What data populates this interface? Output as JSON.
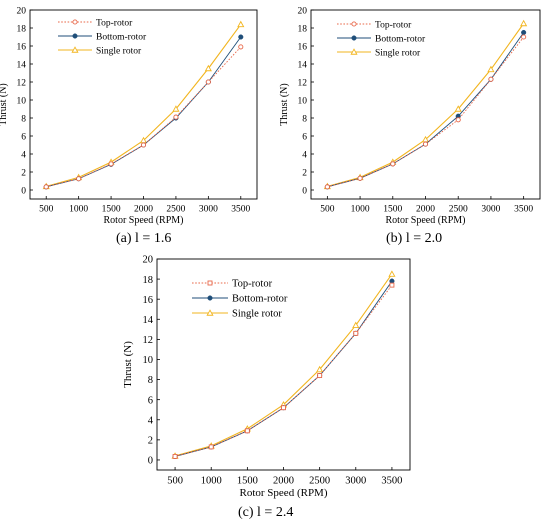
{
  "colors": {
    "top_rotor": "#e8684a",
    "bottom_rotor": "#1f4e79",
    "single_rotor": "#f2b51f",
    "axis": "#000000",
    "background": "#ffffff"
  },
  "chart_data": [
    {
      "type": "line",
      "caption": "(a) l = 1.6",
      "xlabel": "Rotor Speed (RPM)",
      "ylabel": "Thrust (N)",
      "x": [
        500,
        1000,
        1500,
        2000,
        2500,
        3000,
        3500
      ],
      "xlim": [
        250,
        3750
      ],
      "ylim": [
        -1,
        20
      ],
      "xticks": [
        500,
        1000,
        1500,
        2000,
        2500,
        3000,
        3500
      ],
      "yticks": [
        0,
        2,
        4,
        6,
        8,
        10,
        12,
        14,
        16,
        18,
        20
      ],
      "grid": false,
      "legend_position": "top-left",
      "series": [
        {
          "name": "Top-rotor",
          "style": "dotted",
          "marker": "open-circle",
          "values": [
            0.35,
            1.25,
            2.9,
            5.0,
            8.1,
            12.0,
            15.9
          ]
        },
        {
          "name": "Bottom-rotor",
          "style": "solid",
          "marker": "filled-circle",
          "values": [
            0.35,
            1.25,
            2.85,
            5.0,
            8.0,
            12.0,
            17.0
          ]
        },
        {
          "name": "Single rotor",
          "style": "solid",
          "marker": "triangle",
          "values": [
            0.4,
            1.4,
            3.1,
            5.5,
            9.0,
            13.5,
            18.4
          ]
        }
      ]
    },
    {
      "type": "line",
      "caption": "(b) l = 2.0",
      "xlabel": "Rotor Speed (RPM)",
      "ylabel": "Thrust (N)",
      "x": [
        500,
        1000,
        1500,
        2000,
        2500,
        3000,
        3500
      ],
      "xlim": [
        250,
        3750
      ],
      "ylim": [
        -1,
        20
      ],
      "xticks": [
        500,
        1000,
        1500,
        2000,
        2500,
        3000,
        3500
      ],
      "yticks": [
        0,
        2,
        4,
        6,
        8,
        10,
        12,
        14,
        16,
        18,
        20
      ],
      "grid": false,
      "legend_position": "top-left",
      "series": [
        {
          "name": "Top-rotor",
          "style": "dotted",
          "marker": "open-circle",
          "values": [
            0.35,
            1.3,
            2.9,
            5.1,
            7.8,
            12.3,
            17.0
          ]
        },
        {
          "name": "Bottom-rotor",
          "style": "solid",
          "marker": "filled-circle",
          "values": [
            0.35,
            1.3,
            2.9,
            5.1,
            8.2,
            12.3,
            17.5
          ]
        },
        {
          "name": "Single rotor",
          "style": "solid",
          "marker": "triangle",
          "values": [
            0.4,
            1.4,
            3.1,
            5.6,
            9.0,
            13.4,
            18.5
          ]
        }
      ]
    },
    {
      "type": "line",
      "caption": "(c) l = 2.4",
      "xlabel": "Rotor Speed (RPM)",
      "ylabel": "Thrust (N)",
      "x": [
        500,
        1000,
        1500,
        2000,
        2500,
        3000,
        3500
      ],
      "xlim": [
        250,
        3750
      ],
      "ylim": [
        -1,
        20
      ],
      "xticks": [
        500,
        1000,
        1500,
        2000,
        2500,
        3000,
        3500
      ],
      "yticks": [
        0,
        2,
        4,
        6,
        8,
        10,
        12,
        14,
        16,
        18,
        20
      ],
      "grid": false,
      "legend_position": "top-left",
      "series": [
        {
          "name": "Top-rotor",
          "style": "dotted",
          "marker": "open-square",
          "values": [
            0.35,
            1.3,
            2.9,
            5.2,
            8.4,
            12.6,
            17.4
          ]
        },
        {
          "name": "Bottom-rotor",
          "style": "solid",
          "marker": "filled-circle",
          "values": [
            0.35,
            1.3,
            2.9,
            5.2,
            8.4,
            12.6,
            17.8
          ]
        },
        {
          "name": "Single rotor",
          "style": "solid",
          "marker": "triangle",
          "values": [
            0.4,
            1.4,
            3.1,
            5.5,
            9.0,
            13.4,
            18.5
          ]
        }
      ]
    }
  ]
}
